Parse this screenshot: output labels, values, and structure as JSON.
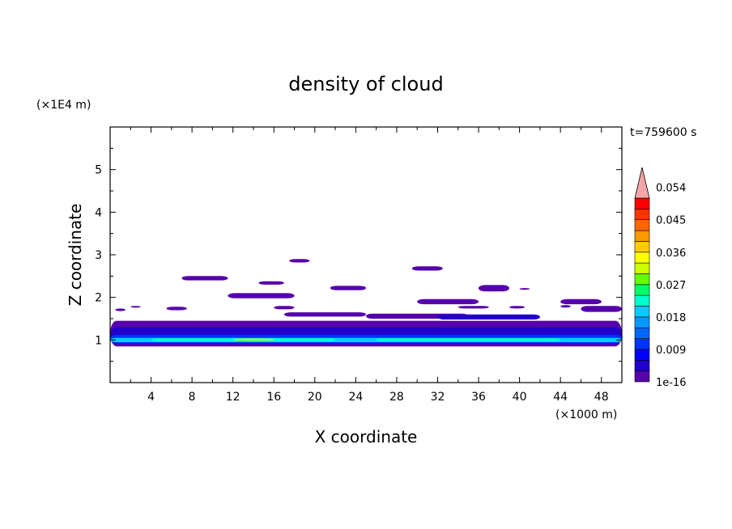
{
  "chart_data": {
    "type": "heatmap",
    "title": "density of cloud",
    "xlabel": "X coordinate",
    "ylabel": "Z coordinate",
    "x_unit": "(×1000 m)",
    "y_unit": "(×1E4 m)",
    "time_label": "t=759600 s",
    "xlim": [
      0,
      50
    ],
    "ylim": [
      0,
      6
    ],
    "x_ticks": [
      "4",
      "8",
      "12",
      "16",
      "20",
      "24",
      "28",
      "32",
      "36",
      "40",
      "44",
      "48"
    ],
    "y_ticks": [
      "1",
      "2",
      "3",
      "4",
      "5"
    ],
    "colorbar": {
      "labels": [
        "1e-16",
        "0.009",
        "0.018",
        "0.027",
        "0.036",
        "0.045",
        "0.054"
      ],
      "colors": [
        "#5500aa",
        "#2200cc",
        "#0000ff",
        "#0033ff",
        "#0066ff",
        "#0099ff",
        "#00ccff",
        "#00ffcc",
        "#00ff66",
        "#66ff00",
        "#ccff00",
        "#ffff00",
        "#ffcc00",
        "#ff9900",
        "#ff6600",
        "#ff3300",
        "#ff0000"
      ],
      "extend_color": "#f4a6a6"
    },
    "regions": [
      {
        "x0": 0,
        "x1": 50,
        "z0": 0.85,
        "z1": 1.45,
        "level": 0
      },
      {
        "x0": 0,
        "x1": 50,
        "z0": 0.9,
        "z1": 1.3,
        "level": 1
      },
      {
        "x0": 0,
        "x1": 50,
        "z0": 0.92,
        "z1": 1.12,
        "level": 3
      },
      {
        "x0": 0,
        "x1": 50,
        "z0": 0.95,
        "z1": 1.05,
        "level": 6
      },
      {
        "x0": 4,
        "x1": 22,
        "z0": 0.97,
        "z1": 1.04,
        "level": 7
      },
      {
        "x0": 12,
        "x1": 16,
        "z0": 0.99,
        "z1": 1.03,
        "level": 10
      },
      {
        "x0": 13,
        "x1": 15,
        "z0": 1.0,
        "z1": 1.02,
        "level": 11
      },
      {
        "x0": 26,
        "x1": 44,
        "z0": 0.97,
        "z1": 1.04,
        "level": 7
      },
      {
        "x0": 25,
        "x1": 35,
        "z0": 1.5,
        "z1": 1.62,
        "level": 0
      },
      {
        "x0": 32,
        "x1": 42,
        "z0": 1.48,
        "z1": 1.6,
        "level": 1
      },
      {
        "x0": 17,
        "x1": 25,
        "z0": 1.55,
        "z1": 1.65,
        "level": 0
      },
      {
        "x0": 0.5,
        "x1": 1.5,
        "z0": 1.68,
        "z1": 1.74,
        "level": 0
      },
      {
        "x0": 2,
        "x1": 3,
        "z0": 1.76,
        "z1": 1.8,
        "level": 0
      },
      {
        "x0": 5.5,
        "x1": 7.5,
        "z0": 1.7,
        "z1": 1.78,
        "level": 0
      },
      {
        "x0": 16,
        "x1": 18,
        "z0": 1.72,
        "z1": 1.8,
        "level": 0
      },
      {
        "x0": 34,
        "x1": 37,
        "z0": 1.74,
        "z1": 1.8,
        "level": 0
      },
      {
        "x0": 39,
        "x1": 40.5,
        "z0": 1.74,
        "z1": 1.8,
        "level": 0
      },
      {
        "x0": 44,
        "x1": 45,
        "z0": 1.76,
        "z1": 1.82,
        "level": 0
      },
      {
        "x0": 46,
        "x1": 50,
        "z0": 1.66,
        "z1": 1.8,
        "level": 0
      },
      {
        "x0": 30,
        "x1": 36,
        "z0": 1.84,
        "z1": 1.96,
        "level": 0
      },
      {
        "x0": 44,
        "x1": 48,
        "z0": 1.84,
        "z1": 1.96,
        "level": 0
      },
      {
        "x0": 11.5,
        "x1": 18,
        "z0": 1.98,
        "z1": 2.1,
        "level": 0
      },
      {
        "x0": 21.5,
        "x1": 25,
        "z0": 2.17,
        "z1": 2.27,
        "level": 0
      },
      {
        "x0": 36,
        "x1": 39,
        "z0": 2.14,
        "z1": 2.29,
        "level": 0
      },
      {
        "x0": 40,
        "x1": 41,
        "z0": 2.18,
        "z1": 2.22,
        "level": 0
      },
      {
        "x0": 14.5,
        "x1": 17,
        "z0": 2.3,
        "z1": 2.38,
        "level": 0
      },
      {
        "x0": 7,
        "x1": 11.5,
        "z0": 2.4,
        "z1": 2.5,
        "level": 0
      },
      {
        "x0": 29.5,
        "x1": 32.5,
        "z0": 2.63,
        "z1": 2.73,
        "level": 0
      },
      {
        "x0": 17.5,
        "x1": 19.5,
        "z0": 2.82,
        "z1": 2.9,
        "level": 0
      }
    ]
  }
}
